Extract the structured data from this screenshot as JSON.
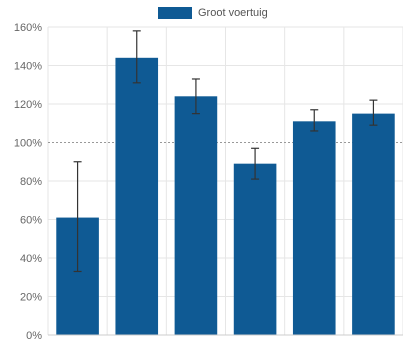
{
  "chart_data": {
    "type": "bar",
    "legend": {
      "label": "Groot voertuig",
      "placement": "top"
    },
    "colors": {
      "bar": "#0f5a94",
      "error": "#333333",
      "grid": "#e6e6e6",
      "reference": "#999999"
    },
    "categories": [
      "",
      "",
      "",
      "",
      "",
      ""
    ],
    "series": [
      {
        "name": "Groot voertuig",
        "values": [
          0.61,
          1.44,
          1.24,
          0.89,
          1.11,
          1.15
        ],
        "error_low": [
          0.33,
          1.31,
          1.15,
          0.81,
          1.06,
          1.09
        ],
        "error_high": [
          0.9,
          1.58,
          1.33,
          0.97,
          1.17,
          1.22
        ]
      }
    ],
    "y_ticks": [
      {
        "value": 0.0,
        "label": "0%"
      },
      {
        "value": 0.2,
        "label": "20%"
      },
      {
        "value": 0.4,
        "label": "40%"
      },
      {
        "value": 0.6,
        "label": "60%"
      },
      {
        "value": 0.8,
        "label": "80%"
      },
      {
        "value": 1.0,
        "label": "100%"
      },
      {
        "value": 1.2,
        "label": "120%"
      },
      {
        "value": 1.4,
        "label": "140%"
      },
      {
        "value": 1.6,
        "label": "160%"
      }
    ],
    "ylim": [
      0,
      1.6
    ],
    "reference_line": 1.0,
    "grid": true
  }
}
